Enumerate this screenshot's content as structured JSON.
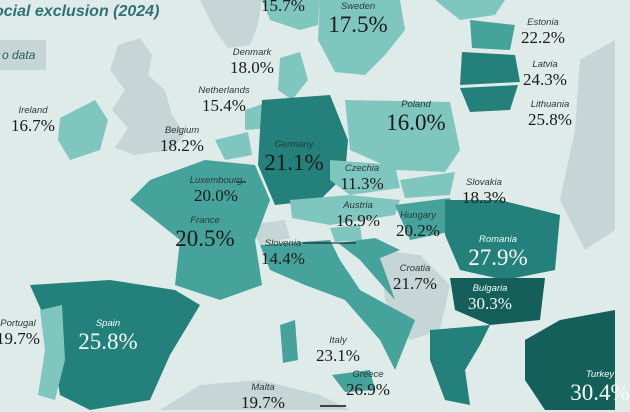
{
  "title": "ocial exclusion (2024)",
  "legend": {
    "no_data_label": "o data",
    "no_data_color": "#c6d5d5"
  },
  "colors": {
    "background": "#dfebe8",
    "light": "#7fc6bf",
    "mid": "#45a39b",
    "dark": "#23807a",
    "darkest": "#155f5b"
  },
  "countries": [
    {
      "name": "",
      "value": "15.7%"
    },
    {
      "name": "Sweden",
      "value": "17.5%"
    },
    {
      "name": "Estonia",
      "value": "22.2%"
    },
    {
      "name": "Latvia",
      "value": "24.3%"
    },
    {
      "name": "Lithuania",
      "value": "25.8%"
    },
    {
      "name": "Denmark",
      "value": "18.0%"
    },
    {
      "name": "Netherlands",
      "value": "15.4%"
    },
    {
      "name": "Ireland",
      "value": "16.7%"
    },
    {
      "name": "Belgium",
      "value": "18.2%"
    },
    {
      "name": "Germany",
      "value": "21.1%"
    },
    {
      "name": "Poland",
      "value": "16.0%"
    },
    {
      "name": "Czechia",
      "value": "11.3%"
    },
    {
      "name": "Slovakia",
      "value": "18.3%"
    },
    {
      "name": "Luxembourg",
      "value": "20.0%"
    },
    {
      "name": "Austria",
      "value": "16.9%"
    },
    {
      "name": "Hungary",
      "value": "20.2%"
    },
    {
      "name": "France",
      "value": "20.5%"
    },
    {
      "name": "Romania",
      "value": "27.9%"
    },
    {
      "name": "Slovenia",
      "value": "14.4%"
    },
    {
      "name": "Croatia",
      "value": "21.7%"
    },
    {
      "name": "Bulgaria",
      "value": "30.3%"
    },
    {
      "name": "Portugal",
      "value": "19.7%"
    },
    {
      "name": "Spain",
      "value": "25.8%"
    },
    {
      "name": "Italy",
      "value": "23.1%"
    },
    {
      "name": "Greece",
      "value": "26.9%"
    },
    {
      "name": "Malta",
      "value": "19.7%"
    },
    {
      "name": "Turkey",
      "value": "30.4%"
    }
  ]
}
